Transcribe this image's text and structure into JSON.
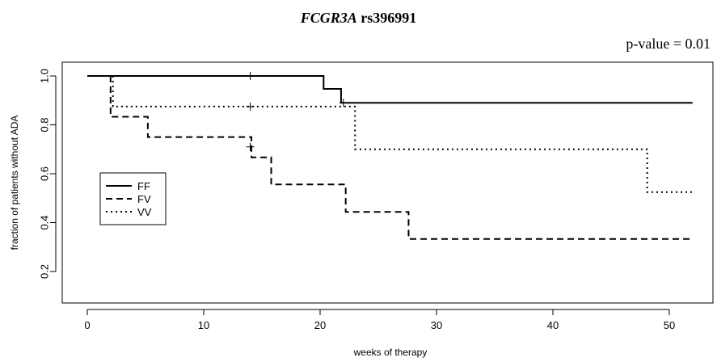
{
  "chart_data": {
    "type": "line",
    "title_gene": "FCGR3A",
    "title_snp": "rs396991",
    "annotation": "p-value = 0.01",
    "xlabel": "weeks of therapy",
    "ylabel": "fraction of patients without ADA",
    "xlim": [
      -2,
      54
    ],
    "ylim": [
      0.05,
      1.05
    ],
    "x_ticks": [
      0,
      10,
      20,
      30,
      40,
      50
    ],
    "y_ticks": [
      0.2,
      0.4,
      0.6,
      0.8,
      1.0
    ],
    "x_tick_labels": [
      "0",
      "10",
      "20",
      "30",
      "40",
      "50"
    ],
    "y_tick_labels": [
      "0.2",
      "0.4",
      "0.6",
      "0.8",
      "1.0"
    ],
    "grid": false,
    "legend_position": "left",
    "series": [
      {
        "name": "FF",
        "style": "solid",
        "steps": [
          [
            0,
            1.0
          ],
          [
            20.3,
            0.947
          ],
          [
            21.8,
            0.89
          ],
          [
            52,
            0.89
          ]
        ],
        "censored": [
          [
            14,
            1.0
          ],
          [
            22,
            0.89
          ]
        ]
      },
      {
        "name": "FV",
        "style": "dashed",
        "steps": [
          [
            2,
            1.0
          ],
          [
            2,
            0.833
          ],
          [
            5.2,
            0.75
          ],
          [
            14.1,
            0.667
          ],
          [
            15.8,
            0.556
          ],
          [
            22.2,
            0.444
          ],
          [
            27.6,
            0.333
          ],
          [
            52,
            0.333
          ]
        ],
        "censored": [
          [
            14,
            0.71
          ]
        ]
      },
      {
        "name": "VV",
        "style": "dotted",
        "steps": [
          [
            2.2,
            1.0
          ],
          [
            2.2,
            0.875
          ],
          [
            23,
            0.7
          ],
          [
            48.1,
            0.525
          ],
          [
            52,
            0.525
          ]
        ],
        "censored": [
          [
            14,
            0.875
          ]
        ]
      }
    ]
  }
}
